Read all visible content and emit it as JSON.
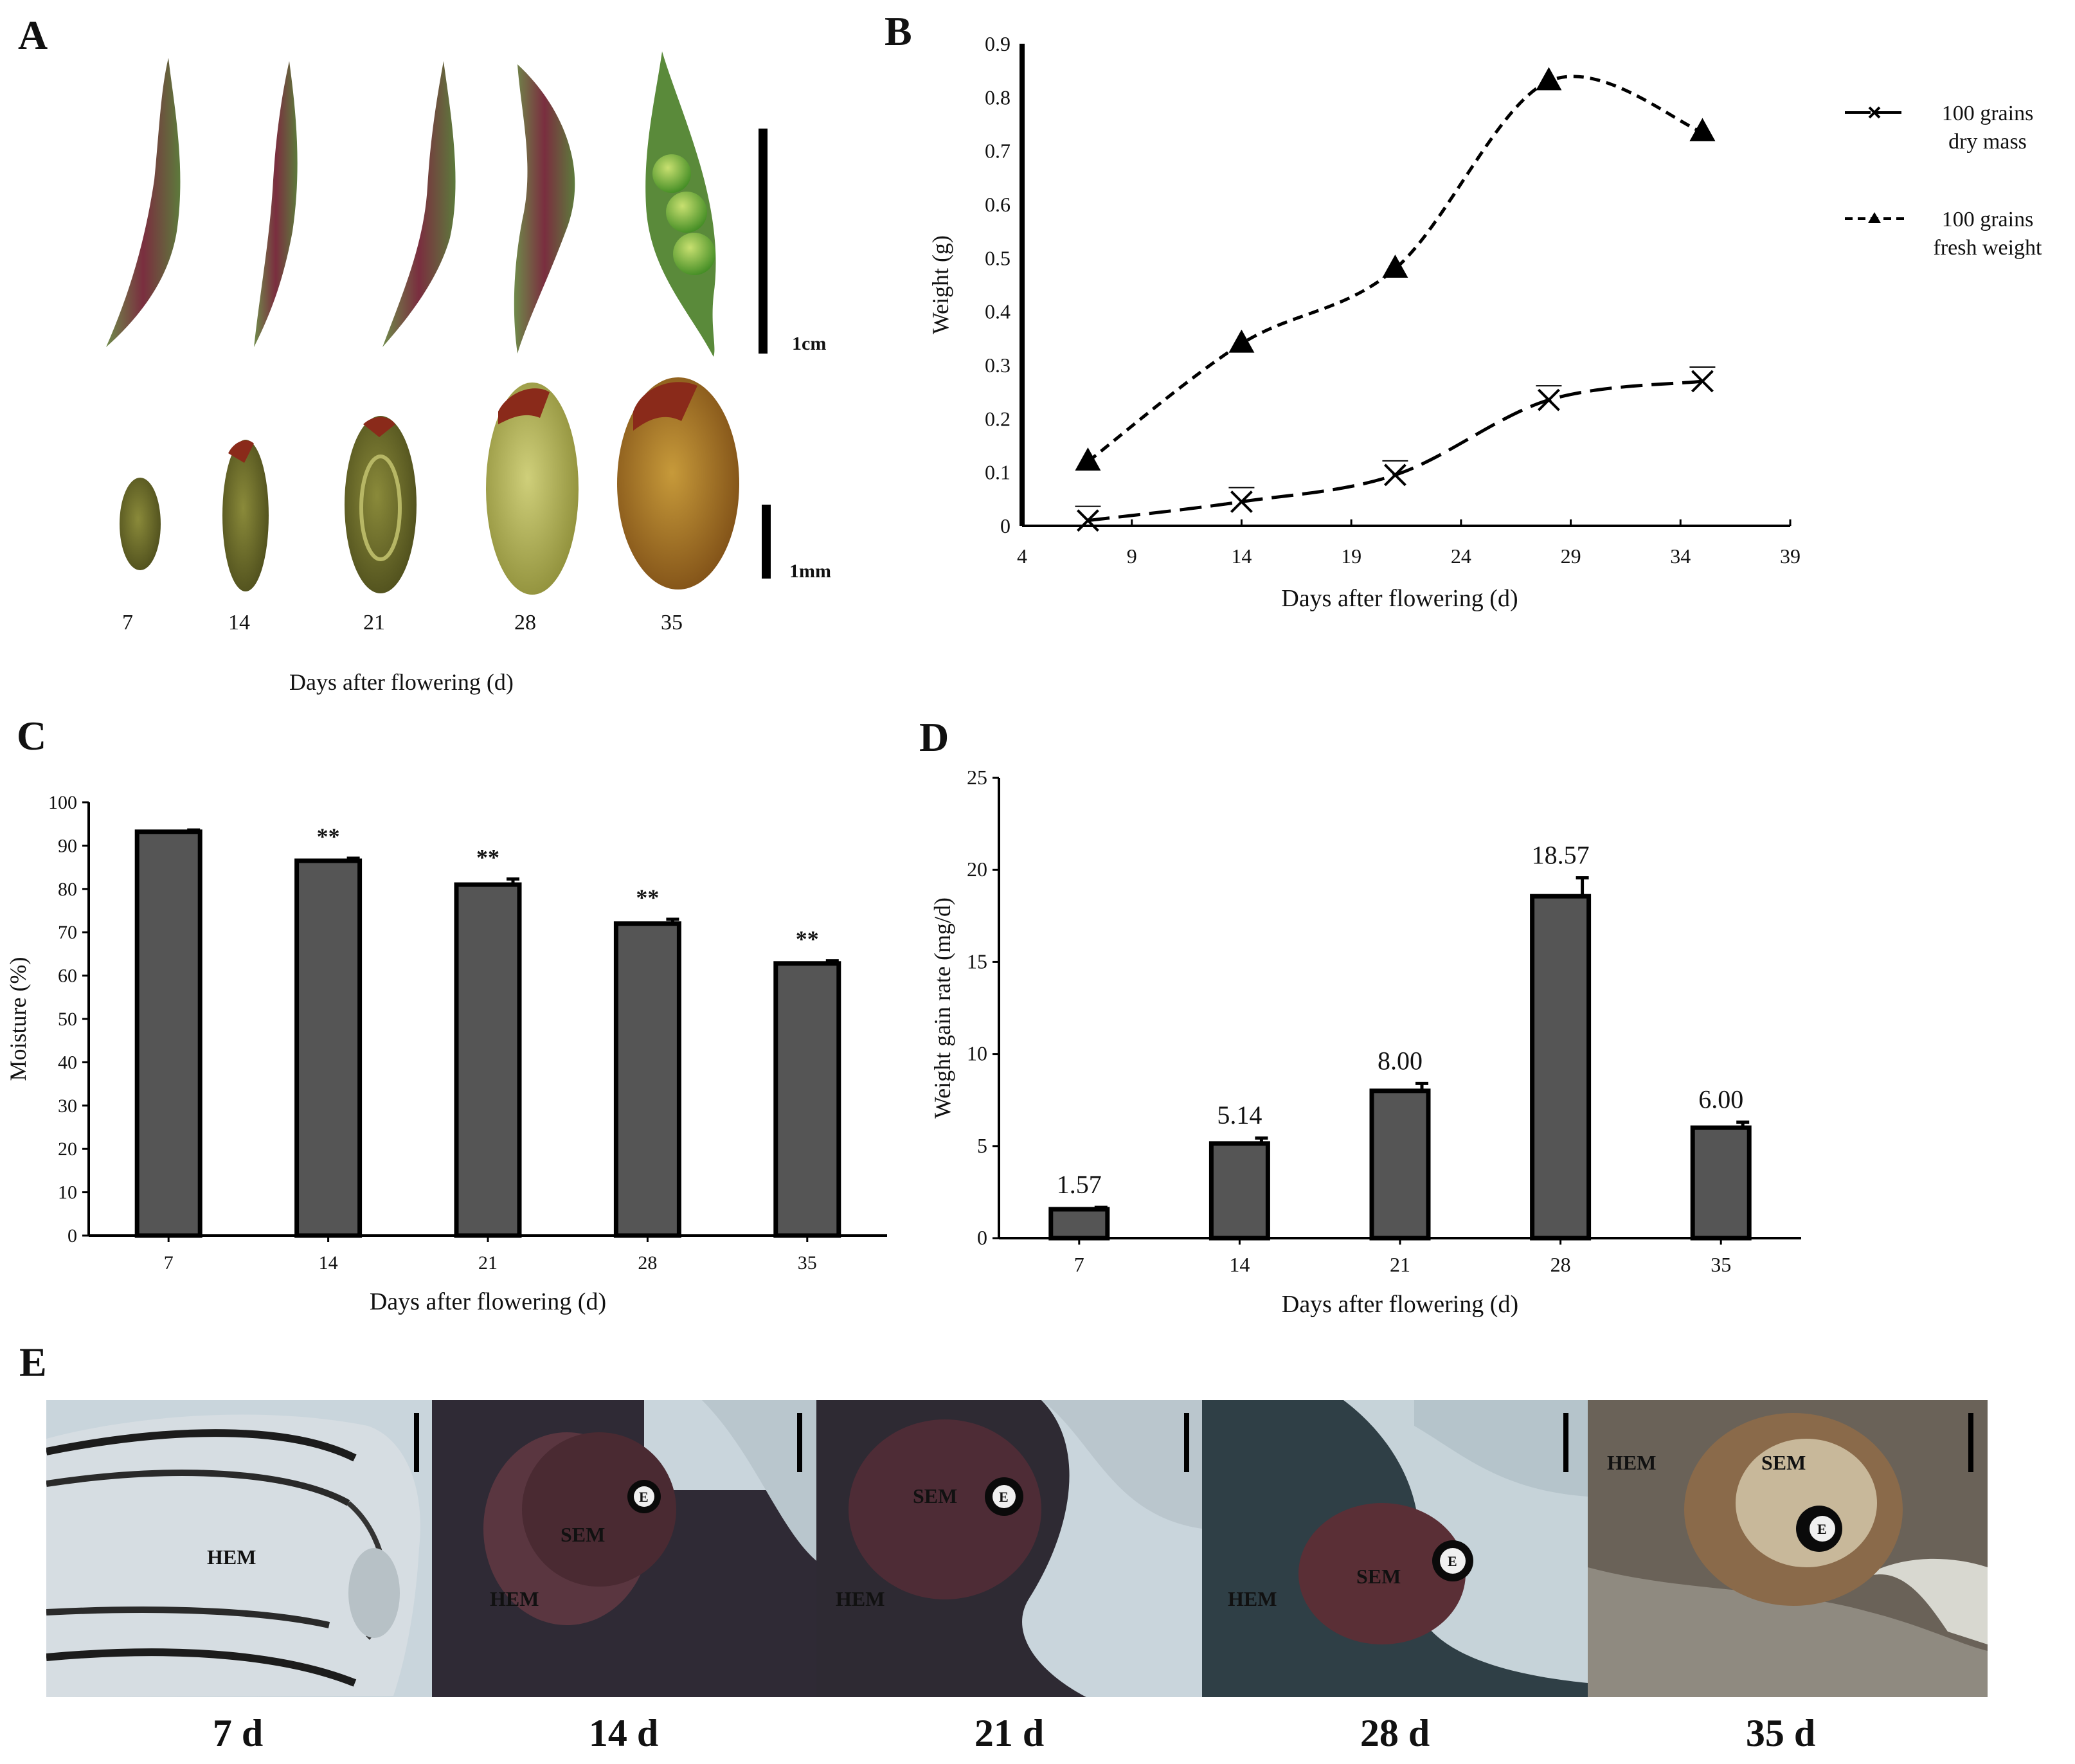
{
  "panels": {
    "a": {
      "letter": "A",
      "days": [
        "7",
        "14",
        "21",
        "28",
        "35"
      ],
      "scale_pod": "1cm",
      "scale_seed": "1mm",
      "xlabel": "Days after flowering (d)"
    },
    "e": {
      "letter": "E",
      "day_labels": [
        "7 d",
        "14 d",
        "21 d",
        "28 d",
        "35 d"
      ],
      "tissue_labels": {
        "hem": "HEM",
        "sem": "SEM",
        "e": "E"
      }
    }
  },
  "chart_data": [
    {
      "id": "B",
      "letter": "B",
      "type": "line",
      "xlabel": "Days after flowering (d)",
      "ylabel": "Weight (g)",
      "xlim": [
        4,
        39
      ],
      "xticks": [
        4,
        9,
        14,
        19,
        24,
        29,
        34,
        39
      ],
      "ylim": [
        0,
        0.9
      ],
      "yticks": [
        0,
        0.1,
        0.2,
        0.3,
        0.4,
        0.5,
        0.6,
        0.7,
        0.8,
        0.9
      ],
      "x": [
        7,
        14,
        21,
        28,
        35
      ],
      "series": [
        {
          "name": "100 grains dry mass",
          "legend_lines": [
            "100 grains",
            "dry mass"
          ],
          "marker": "x",
          "dash": "long",
          "values": [
            0.01,
            0.045,
            0.095,
            0.235,
            0.27
          ]
        },
        {
          "name": "100 grains fresh weight",
          "legend_lines": [
            "100 grains",
            "fresh weight"
          ],
          "marker": "triangle",
          "dash": "short",
          "values": [
            0.12,
            0.34,
            0.48,
            0.83,
            0.735
          ]
        }
      ],
      "legend": "top-right"
    },
    {
      "id": "C",
      "letter": "C",
      "type": "bar",
      "xlabel": "Days after flowering (d)",
      "ylabel": "Moisture (%)",
      "categories": [
        "7",
        "14",
        "21",
        "28",
        "35"
      ],
      "values": [
        93.2,
        86.5,
        81,
        72,
        62.8
      ],
      "errors": [
        0.4,
        0.6,
        1.3,
        1,
        0.6
      ],
      "annotations": [
        "",
        "**",
        "**",
        "**",
        "**"
      ],
      "ylim": [
        0,
        100
      ],
      "yticks": [
        0,
        10,
        20,
        30,
        40,
        50,
        60,
        70,
        80,
        90,
        100
      ],
      "bar_color": "#555555"
    },
    {
      "id": "D",
      "letter": "D",
      "type": "bar",
      "xlabel": "Days after flowering (d)",
      "ylabel": "Weight gain rate (mg/d)",
      "categories": [
        "7",
        "14",
        "21",
        "28",
        "35"
      ],
      "values": [
        1.57,
        5.14,
        8.0,
        18.57,
        6.0
      ],
      "errors": [
        0.1,
        0.3,
        0.4,
        1.0,
        0.3
      ],
      "value_labels": [
        "1.57",
        "5.14",
        "8.00",
        "18.57",
        "6.00"
      ],
      "ylim": [
        0,
        25
      ],
      "yticks": [
        0,
        5,
        10,
        15,
        20,
        25
      ],
      "bar_color": "#555555"
    }
  ]
}
